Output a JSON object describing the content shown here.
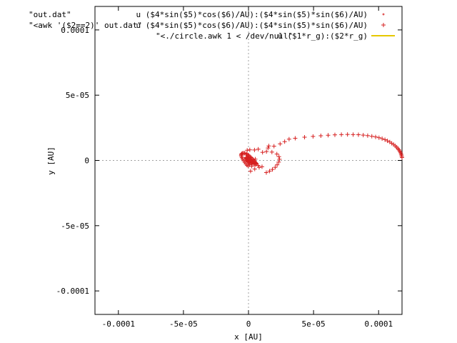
{
  "chart_data": {
    "type": "scatter",
    "title": "",
    "xlabel": "x [AU]",
    "ylabel": "y [AU]",
    "xlim": [
      -0.000118,
      0.000118
    ],
    "ylim": [
      -0.000118,
      0.000118
    ],
    "x_ticks": [
      {
        "value": -0.0001,
        "label": "-0.0001"
      },
      {
        "value": -5e-05,
        "label": "-5e-05"
      },
      {
        "value": 0,
        "label": "0"
      },
      {
        "value": 5e-05,
        "label": "5e-05"
      },
      {
        "value": 0.0001,
        "label": "0.0001"
      }
    ],
    "y_ticks": [
      {
        "value": -0.0001,
        "label": "-0.0001"
      },
      {
        "value": -5e-05,
        "label": "-5e-05"
      },
      {
        "value": 0,
        "label": "0"
      },
      {
        "value": 5e-05,
        "label": "5e-05"
      },
      {
        "value": 0.0001,
        "label": "0.0001"
      }
    ],
    "grid": false,
    "zero_axes": true,
    "legend_placement": "top",
    "colors": {
      "series_points": "#d62020",
      "series_circle": "#e6c800",
      "frame": "#000000",
      "zero_axis": "#a0a0a0"
    },
    "series": [
      {
        "name": "\"out.dat\"",
        "legend_expr": "u ($4*sin($5)*cos($6)/AU):($4*sin($5)*sin($6)/AU)",
        "style": "points-small",
        "x": [],
        "y": []
      },
      {
        "name": "\"<awk '($2==2)' out.dat\"",
        "legend_expr": "u ($4*sin($5)*cos($6)/AU):($4*sin($5)*sin($6)/AU)",
        "style": "points",
        "x": [
          0.000118,
          0.0001178,
          0.0001175,
          0.0001172,
          0.0001168,
          0.0001162,
          0.0001155,
          0.0001147,
          0.0001138,
          0.0001127,
          0.0001115,
          0.0001101,
          0.0001086,
          0.0001068,
          0.0001049,
          0.0001027,
          0.0001003,
          9.77e-05,
          9.48e-05,
          9.16e-05,
          8.82e-05,
          8.45e-05,
          8.04e-05,
          7.61e-05,
          7.14e-05,
          6.64e-05,
          6.12e-05,
          5.56e-05,
          4.96e-05,
          4.31e-05,
          3.59e-05,
          3.12e-05,
          2.78e-05,
          2.43e-05,
          1.96e-05,
          1.5e-05,
          1.56e-05,
          1.38e-05,
          1.8e-05,
          2.18e-05,
          2.34e-05,
          2.38e-05,
          2.32e-05,
          2.2e-05,
          2.05e-05,
          1.84e-05,
          1.62e-05,
          1.37e-05,
          1.04e-05,
          7.4e-06,
          4.8e-06,
          2.5e-06,
          8e-07,
          -3e-07,
          -1.2e-06,
          -2.1e-06,
          -2.9e-06,
          -3.7e-06,
          -4.4e-06,
          -5e-06,
          -5.4e-06,
          -5.6e-06,
          -5.5e-06,
          -5.1e-06,
          -4.5e-06,
          -3.8e-06,
          -3e-06,
          -2.1e-06,
          -1.2e-06,
          -4e-07,
          4e-07,
          1.2e-06,
          2e-06,
          2.8e-06,
          3.6e-06,
          4.3e-06,
          4.9e-06,
          5.4e-06,
          5.8e-06,
          6e-06,
          5.8e-06,
          5.4e-06,
          4.7e-06,
          3.8e-06,
          2.8e-06,
          1.8e-06,
          9e-07,
          1e-07,
          -6e-07,
          -1.2e-06,
          -1.6e-06,
          -1.8e-06,
          -1.7e-06,
          -1.4e-06,
          -8e-07,
          -1e-07,
          6e-07,
          1.4e-06,
          2e-06,
          2.5e-06,
          2.8e-06,
          2.9e-06,
          2.7e-06,
          2.3e-06,
          1.7e-06,
          1e-06,
          3e-07,
          -3e-07,
          -9e-07,
          -1.3e-06,
          -1.5e-06,
          -1.5e-06,
          1e-06,
          4.6e-06,
          7.5e-06,
          1.08e-05,
          1.6e-06,
          5.2e-06,
          -1e-06,
          8.2e-06
        ],
        "y": [
          2.2e-06,
          3.2e-06,
          4.2e-06,
          5.2e-06,
          6.2e-06,
          7.2e-06,
          8.2e-06,
          9.2e-06,
          1.02e-05,
          1.12e-05,
          1.22e-05,
          1.31e-05,
          1.41e-05,
          1.5e-05,
          1.59e-05,
          1.67e-05,
          1.74e-05,
          1.8e-05,
          1.85e-05,
          1.9e-05,
          1.94e-05,
          1.97e-05,
          1.98e-05,
          1.99e-05,
          1.98e-05,
          1.96e-05,
          1.93e-05,
          1.89e-05,
          1.84e-05,
          1.78e-05,
          1.7e-05,
          1.63e-05,
          1.44e-05,
          1.27e-05,
          1.09e-05,
          9.5e-06,
          1.11e-05,
          6.8e-06,
          6.4e-06,
          4.9e-06,
          2.9e-06,
          9e-07,
          -1.3e-06,
          -3.4e-06,
          -5.3e-06,
          -6.9e-06,
          -8.2e-06,
          -9.3e-06,
          -4.8e-06,
          -3.8e-06,
          -6.6e-06,
          -4.4e-06,
          -3.4e-06,
          -4.3e-06,
          -3.6e-06,
          -2.5e-06,
          -1.4e-06,
          -2e-07,
          1e-06,
          2.1e-06,
          3.1e-06,
          4e-06,
          4.7e-06,
          5.2e-06,
          5.5e-06,
          5.6e-06,
          5.5e-06,
          5.2e-06,
          4.8e-06,
          4.2e-06,
          3.6e-06,
          2.9e-06,
          2.2e-06,
          1.4e-06,
          6e-07,
          -2e-07,
          -9e-07,
          -1.6e-06,
          -2.2e-06,
          -2.6e-06,
          -2.9e-06,
          -3e-06,
          -2.9e-06,
          -2.6e-06,
          -2.2e-06,
          -1.6e-06,
          -1e-06,
          -3e-07,
          4e-07,
          1e-06,
          1.6e-06,
          2e-06,
          2.3e-06,
          2.4e-06,
          2.3e-06,
          2e-06,
          1.6e-06,
          1.1e-06,
          5e-07,
          -1e-07,
          -6e-07,
          -1.1e-06,
          -1.5e-06,
          -1.7e-06,
          -1.8e-06,
          -1.7e-06,
          -1.4e-06,
          -1e-06,
          -5e-07,
          1e-07,
          7e-07,
          1.2e-06,
          8.1e-06,
          8e-06,
          8.6e-06,
          6.2e-06,
          -8.2e-06,
          1e-06,
          7.8e-06,
          -5.3e-06
        ]
      },
      {
        "name": "\"<./circle.awk 1 < /dev/null\"",
        "legend_expr": "u ($1*r_g):($2*r_g)",
        "style": "line",
        "x": [],
        "y": []
      }
    ]
  }
}
